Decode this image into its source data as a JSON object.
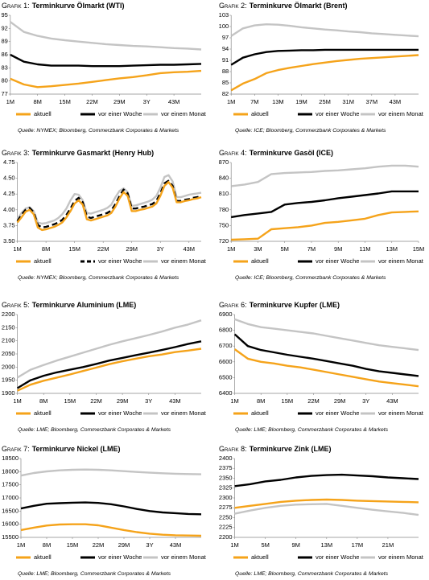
{
  "chart_data": [
    {
      "type": "line",
      "label": "Grafik 1:",
      "title": "Terminkurve Ölmarkt (WTI)",
      "source": "Quelle: NYMEX; Bloomberg, Commerzbank Corporates & Markets",
      "categories": [
        "1M",
        null,
        "8M",
        null,
        "15M",
        null,
        "22M",
        null,
        "29M",
        null,
        "3Y",
        null,
        "43M",
        null,
        null
      ],
      "ylim": [
        77,
        95
      ],
      "yticks": [
        77,
        80,
        83,
        86,
        89,
        92,
        95
      ],
      "series": [
        {
          "name": "aktuell",
          "color": "#f5a31a",
          "values": [
            80.5,
            79.2,
            78.6,
            78.8,
            79.1,
            79.4,
            79.8,
            80.2,
            80.6,
            80.9,
            81.3,
            81.8,
            82.0,
            82.1,
            82.3
          ]
        },
        {
          "name": "vor einer Woche",
          "color": "#000000",
          "values": [
            86,
            84.4,
            83.8,
            83.5,
            83.5,
            83.5,
            83.4,
            83.4,
            83.4,
            83.5,
            83.6,
            83.7,
            83.7,
            83.8,
            83.9
          ]
        },
        {
          "name": "vor einem Monat",
          "color": "#c4c4c4",
          "values": [
            93.5,
            91.2,
            90.3,
            89.7,
            89.3,
            89.0,
            88.7,
            88.4,
            88.2,
            88.0,
            87.9,
            87.7,
            87.5,
            87.4,
            87.2
          ]
        }
      ]
    },
    {
      "type": "line",
      "label": "Grafik 2:",
      "title": "Terminkurve Ölmarkt (Brent)",
      "source": "Quelle: ICE; Bloomberg, Commerzbank Corporates & Markets",
      "categories": [
        "1M",
        null,
        "7M",
        null,
        "13M",
        null,
        "19M",
        null,
        "25M",
        null,
        "31M",
        null,
        "37M",
        null,
        "43M",
        null,
        null
      ],
      "ylim": [
        82,
        103
      ],
      "yticks": [
        82,
        85,
        88,
        91,
        94,
        97,
        100,
        103
      ],
      "series": [
        {
          "name": "aktuell",
          "color": "#f5a31a",
          "values": [
            83,
            84.8,
            86,
            87.6,
            88.4,
            89,
            89.5,
            90,
            90.4,
            90.8,
            91.1,
            91.4,
            91.6,
            91.8,
            92,
            92.2,
            92.4
          ]
        },
        {
          "name": "vor einer Woche",
          "color": "#000000",
          "values": [
            89.8,
            91.7,
            92.6,
            93.2,
            93.5,
            93.6,
            93.7,
            93.7,
            93.8,
            93.8,
            93.8,
            93.8,
            93.8,
            93.8,
            93.8,
            93.8,
            93.8
          ]
        },
        {
          "name": "vor einem Monat",
          "color": "#c4c4c4",
          "values": [
            97.5,
            99.5,
            100.3,
            100.6,
            100.5,
            100.2,
            99.8,
            99.5,
            99.2,
            99,
            98.7,
            98.5,
            98.2,
            98,
            97.8,
            97.6,
            97.4
          ]
        }
      ]
    },
    {
      "type": "line",
      "label": "Grafik 3:",
      "title": "Terminkurve Gasmarkt (Henry Hub)",
      "source": "Quelle: NYMEX; Bloomberg, Commerzbank Corporates & Markets",
      "categories": [
        "1M",
        null,
        null,
        null,
        null,
        null,
        null,
        "8M",
        null,
        null,
        null,
        null,
        null,
        null,
        "15M",
        null,
        null,
        null,
        null,
        null,
        null,
        "22M",
        null,
        null,
        null,
        null,
        null,
        null,
        "29M",
        null,
        null,
        null,
        null,
        null,
        null,
        "3Y",
        null,
        null,
        null,
        null,
        null,
        null,
        "43M",
        null,
        null,
        null
      ],
      "ylim": [
        3.5,
        4.75
      ],
      "yticks": [
        {
          "value": 3.5,
          "label": "3.50"
        },
        {
          "value": 3.75,
          "label": "3.75"
        },
        {
          "value": 4,
          "label": "4.00"
        },
        {
          "value": 4.25,
          "label": "4.25"
        },
        {
          "value": 4.5,
          "label": "4.50"
        },
        {
          "value": 4.75,
          "label": "4.75"
        }
      ],
      "series": [
        {
          "name": "aktuell",
          "color": "#f5a31a",
          "values": [
            3.8,
            3.88,
            3.97,
            4.0,
            3.93,
            3.72,
            3.68,
            3.69,
            3.71,
            3.73,
            3.76,
            3.8,
            3.88,
            3.98,
            4.1,
            4.15,
            4.08,
            3.85,
            3.83,
            3.85,
            3.87,
            3.89,
            3.91,
            3.95,
            4.05,
            4.18,
            4.28,
            4.22,
            3.98,
            3.98,
            4.0,
            4.01,
            4.03,
            4.05,
            4.1,
            4.22,
            4.38,
            4.44,
            4.35,
            4.12,
            4.12,
            4.14,
            4.15,
            4.17,
            4.18,
            4.2
          ]
        },
        {
          "name": "vor einer Woche",
          "color": "#000000",
          "dash": true,
          "values": [
            3.82,
            3.92,
            4.0,
            4.03,
            3.96,
            3.76,
            3.72,
            3.73,
            3.75,
            3.77,
            3.8,
            3.84,
            3.92,
            4.02,
            4.14,
            4.19,
            4.12,
            3.89,
            3.87,
            3.89,
            3.91,
            3.93,
            3.95,
            3.99,
            4.09,
            4.22,
            4.32,
            4.26,
            4.02,
            4.02,
            4.04,
            4.05,
            4.07,
            4.09,
            4.14,
            4.26,
            4.42,
            4.46,
            4.38,
            4.14,
            4.14,
            4.16,
            4.17,
            4.19,
            4.2,
            4.22
          ]
        },
        {
          "name": "vor einem Monat",
          "color": "#c4c4c4",
          "values": [
            3.85,
            3.95,
            4.02,
            4.04,
            3.98,
            3.8,
            3.78,
            3.79,
            3.81,
            3.83,
            3.87,
            3.93,
            4.02,
            4.15,
            4.25,
            4.24,
            4.15,
            3.95,
            3.94,
            3.96,
            3.98,
            4.0,
            4.03,
            4.08,
            4.2,
            4.3,
            4.34,
            4.28,
            4.06,
            4.07,
            4.09,
            4.11,
            4.13,
            4.16,
            4.22,
            4.35,
            4.52,
            4.55,
            4.45,
            4.2,
            4.2,
            4.22,
            4.24,
            4.25,
            4.26,
            4.27
          ]
        }
      ]
    },
    {
      "type": "line",
      "label": "Grafik 4:",
      "title": "Terminkurve Gasöl (ICE)",
      "source": "Quelle: ICE; Bloomberg, Commerzbank Corporates & Markets",
      "categories": [
        "1M",
        null,
        "3M",
        null,
        "5M",
        null,
        "7M",
        null,
        "9M",
        null,
        "11M",
        null,
        "13M",
        null,
        "15M"
      ],
      "ylim": [
        720,
        870
      ],
      "yticks": [
        720,
        750,
        780,
        810,
        840,
        870
      ],
      "series": [
        {
          "name": "aktuell",
          "color": "#f5a31a",
          "values": [
            723,
            724,
            725,
            743,
            745,
            747,
            750,
            755,
            757,
            760,
            763,
            770,
            775,
            776,
            777
          ]
        },
        {
          "name": "vor einer Woche",
          "color": "#000000",
          "values": [
            766,
            770,
            773,
            776,
            790,
            793,
            795,
            798,
            802,
            805,
            808,
            811,
            815,
            815,
            815
          ]
        },
        {
          "name": "vor einem Monat",
          "color": "#c4c4c4",
          "values": [
            825,
            828,
            833,
            848,
            850,
            851,
            852,
            854,
            855,
            857,
            859,
            862,
            864,
            864,
            862
          ]
        }
      ]
    },
    {
      "type": "line",
      "label": "Grafik 5:",
      "title": "Terminkurve Aluminium (LME)",
      "source": "Quelle: LME; Bloomberg, Commerzbank Corporates & Markets",
      "categories": [
        "1M",
        null,
        "8M",
        null,
        "15M",
        null,
        "22M",
        null,
        "29M",
        null,
        "3Y",
        null,
        "43M",
        null,
        null
      ],
      "ylim": [
        1900,
        2200
      ],
      "yticks": [
        1900,
        1950,
        2000,
        2050,
        2100,
        2150,
        2200
      ],
      "series": [
        {
          "name": "aktuell",
          "color": "#f5a31a",
          "values": [
            1910,
            1933,
            1948,
            1960,
            1972,
            1985,
            1998,
            2011,
            2022,
            2032,
            2041,
            2048,
            2057,
            2063,
            2070
          ]
        },
        {
          "name": "vor einer Woche",
          "color": "#000000",
          "values": [
            1920,
            1950,
            1967,
            1980,
            1990,
            2000,
            2012,
            2025,
            2035,
            2045,
            2055,
            2065,
            2076,
            2088,
            2098
          ]
        },
        {
          "name": "vor einem Monat",
          "color": "#c4c4c4",
          "values": [
            1960,
            1990,
            2008,
            2025,
            2040,
            2055,
            2070,
            2085,
            2098,
            2110,
            2122,
            2135,
            2150,
            2162,
            2178
          ]
        }
      ]
    },
    {
      "type": "line",
      "label": "Grafik 6:",
      "title": "Terminkurve Kupfer (LME)",
      "source": "Quelle: LME; Bloomberg, Commerzbank Corporates & Markets",
      "categories": [
        "1M",
        null,
        "8M",
        null,
        "15M",
        null,
        "22M",
        null,
        "29M",
        null,
        "3Y",
        null,
        "43M",
        null,
        null
      ],
      "ylim": [
        6400,
        6900
      ],
      "yticks": [
        6400,
        6500,
        6600,
        6700,
        6800,
        6900
      ],
      "series": [
        {
          "name": "aktuell",
          "color": "#f5a31a",
          "values": [
            6680,
            6620,
            6600,
            6590,
            6575,
            6565,
            6550,
            6535,
            6520,
            6505,
            6490,
            6475,
            6465,
            6455,
            6445
          ]
        },
        {
          "name": "vor einer Woche",
          "color": "#000000",
          "values": [
            6775,
            6700,
            6675,
            6660,
            6645,
            6632,
            6620,
            6605,
            6590,
            6575,
            6555,
            6540,
            6530,
            6520,
            6510
          ]
        },
        {
          "name": "vor einem Monat",
          "color": "#c4c4c4",
          "values": [
            6870,
            6840,
            6820,
            6810,
            6800,
            6790,
            6780,
            6765,
            6750,
            6735,
            6720,
            6705,
            6695,
            6685,
            6675
          ]
        }
      ]
    },
    {
      "type": "line",
      "label": "Grafik 7:",
      "title": "Terminkurve Nickel (LME)",
      "source": "Quelle: LME; Bloomberg, Commerzbank Corporates & Markets",
      "categories": [
        "1M",
        null,
        "8M",
        null,
        "15M",
        null,
        "22M",
        null,
        "29M",
        null,
        "3Y",
        null,
        "43M",
        null,
        null
      ],
      "ylim": [
        15500,
        18500
      ],
      "yticks": [
        15500,
        16000,
        16500,
        17000,
        17500,
        18000,
        18500
      ],
      "series": [
        {
          "name": "aktuell",
          "color": "#f5a31a",
          "values": [
            15780,
            15870,
            15950,
            15990,
            16000,
            16000,
            15960,
            15870,
            15780,
            15700,
            15640,
            15600,
            15580,
            15570,
            15560
          ]
        },
        {
          "name": "vor einer Woche",
          "color": "#000000",
          "values": [
            16600,
            16700,
            16780,
            16800,
            16820,
            16830,
            16810,
            16760,
            16680,
            16580,
            16500,
            16450,
            16420,
            16390,
            16380
          ]
        },
        {
          "name": "vor einem Monat",
          "color": "#c4c4c4",
          "values": [
            17850,
            17950,
            18010,
            18050,
            18070,
            18080,
            18070,
            18050,
            18020,
            17990,
            17960,
            17940,
            17920,
            17910,
            17900
          ]
        }
      ]
    },
    {
      "type": "line",
      "label": "Grafik 8:",
      "title": "Terminkurve Zink (LME)",
      "source": "Quelle: LME; Bloomberg, Commerzbank Corporates & Markets",
      "categories": [
        "1M",
        null,
        "5M",
        null,
        "9M",
        null,
        "13M",
        null,
        "17M",
        null,
        "21M",
        null,
        null
      ],
      "ylim": [
        2200,
        2400
      ],
      "yticks": [
        2200,
        2225,
        2250,
        2275,
        2300,
        2325,
        2350,
        2375,
        2400
      ],
      "series": [
        {
          "name": "aktuell",
          "color": "#f5a31a",
          "values": [
            2275,
            2280,
            2285,
            2290,
            2293,
            2295,
            2296,
            2295,
            2293,
            2292,
            2291,
            2290,
            2289
          ]
        },
        {
          "name": "vor einer Woche",
          "color": "#000000",
          "values": [
            2330,
            2335,
            2342,
            2346,
            2352,
            2356,
            2358,
            2359,
            2357,
            2355,
            2352,
            2350,
            2348
          ]
        },
        {
          "name": "vor einem Monat",
          "color": "#c4c4c4",
          "values": [
            2260,
            2268,
            2275,
            2280,
            2283,
            2284,
            2285,
            2280,
            2275,
            2270,
            2266,
            2262,
            2257
          ]
        }
      ]
    }
  ]
}
